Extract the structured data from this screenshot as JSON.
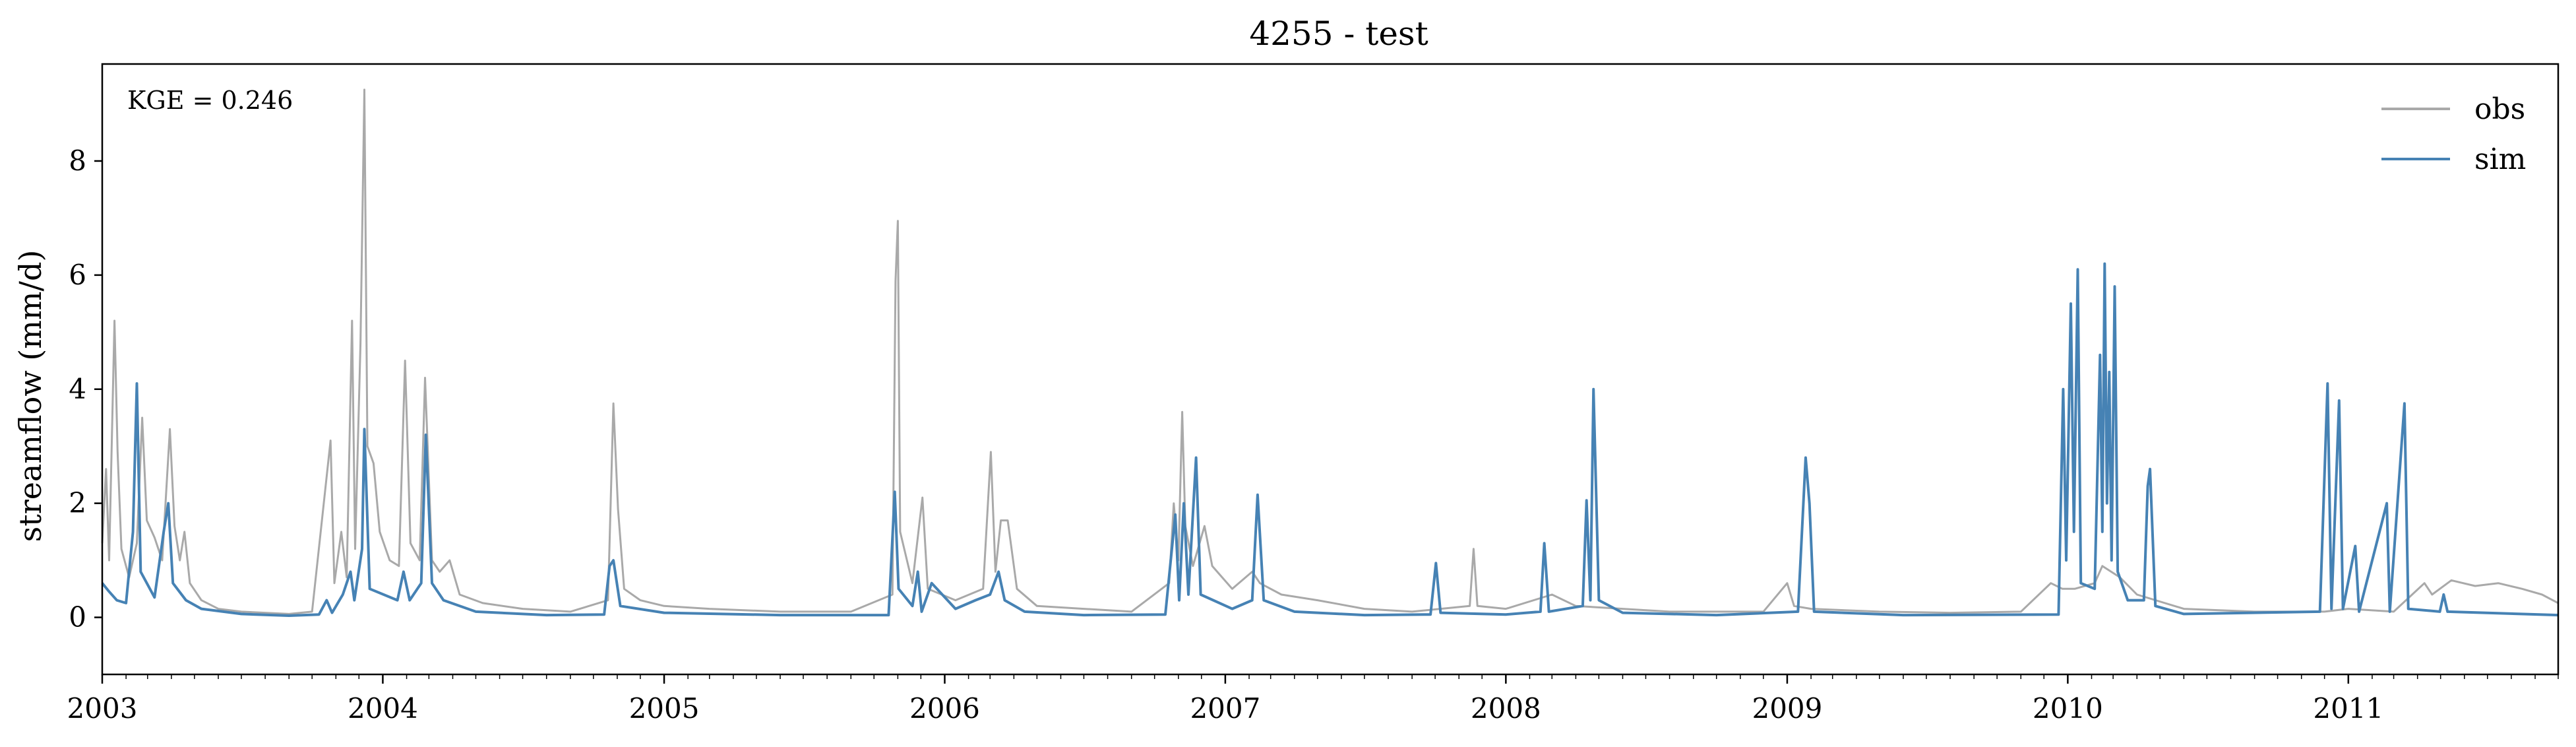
{
  "chart_data": {
    "type": "line",
    "title": "4255 - test",
    "xlabel": "",
    "ylabel": "streamflow (mm/d)",
    "annotation": "KGE = 0.246",
    "xlim": [
      "2003-01-01",
      "2011-10-01"
    ],
    "ylim": [
      -1,
      9.7
    ],
    "x_ticks": [
      "2003",
      "2004",
      "2005",
      "2006",
      "2007",
      "2008",
      "2009",
      "2010",
      "2011"
    ],
    "y_ticks": [
      "0",
      "2",
      "4",
      "6",
      "8"
    ],
    "legend_position": "top-right",
    "grid": false,
    "series": [
      {
        "name": "obs",
        "color": "#a9a9a9",
        "points": [
          [
            "2003-01-01",
            1.3
          ],
          [
            "2003-01-06",
            2.6
          ],
          [
            "2003-01-10",
            1.0
          ],
          [
            "2003-01-17",
            5.2
          ],
          [
            "2003-01-21",
            2.9
          ],
          [
            "2003-01-26",
            1.2
          ],
          [
            "2003-02-05",
            0.7
          ],
          [
            "2003-02-15",
            1.3
          ],
          [
            "2003-02-22",
            3.5
          ],
          [
            "2003-02-28",
            1.7
          ],
          [
            "2003-03-10",
            1.4
          ],
          [
            "2003-03-20",
            1.0
          ],
          [
            "2003-03-30",
            3.3
          ],
          [
            "2003-04-05",
            1.6
          ],
          [
            "2003-04-12",
            1.0
          ],
          [
            "2003-04-18",
            1.5
          ],
          [
            "2003-04-25",
            0.6
          ],
          [
            "2003-05-10",
            0.3
          ],
          [
            "2003-06-01",
            0.15
          ],
          [
            "2003-07-01",
            0.1
          ],
          [
            "2003-09-01",
            0.06
          ],
          [
            "2003-10-01",
            0.1
          ],
          [
            "2003-10-25",
            3.1
          ],
          [
            "2003-10-30",
            0.6
          ],
          [
            "2003-11-08",
            1.5
          ],
          [
            "2003-11-15",
            0.7
          ],
          [
            "2003-11-22",
            5.2
          ],
          [
            "2003-11-26",
            1.2
          ],
          [
            "2003-12-03",
            4.8
          ],
          [
            "2003-12-08",
            9.25
          ],
          [
            "2003-12-12",
            3.0
          ],
          [
            "2003-12-20",
            2.7
          ],
          [
            "2003-12-28",
            1.5
          ],
          [
            "2004-01-10",
            1.0
          ],
          [
            "2004-01-22",
            0.9
          ],
          [
            "2004-01-30",
            4.5
          ],
          [
            "2004-02-06",
            1.3
          ],
          [
            "2004-02-18",
            1.0
          ],
          [
            "2004-02-25",
            4.2
          ],
          [
            "2004-03-05",
            1.0
          ],
          [
            "2004-03-15",
            0.8
          ],
          [
            "2004-03-28",
            1.0
          ],
          [
            "2004-04-10",
            0.4
          ],
          [
            "2004-05-10",
            0.25
          ],
          [
            "2004-07-01",
            0.15
          ],
          [
            "2004-09-01",
            0.1
          ],
          [
            "2004-10-20",
            0.3
          ],
          [
            "2004-10-27",
            3.75
          ],
          [
            "2004-11-02",
            1.9
          ],
          [
            "2004-11-10",
            0.5
          ],
          [
            "2004-12-01",
            0.3
          ],
          [
            "2005-01-01",
            0.2
          ],
          [
            "2005-03-01",
            0.15
          ],
          [
            "2005-06-01",
            0.1
          ],
          [
            "2005-09-01",
            0.1
          ],
          [
            "2005-10-25",
            0.4
          ],
          [
            "2005-10-29",
            5.9
          ],
          [
            "2005-11-01",
            6.95
          ],
          [
            "2005-11-04",
            1.5
          ],
          [
            "2005-11-20",
            0.6
          ],
          [
            "2005-12-03",
            2.1
          ],
          [
            "2005-12-10",
            0.5
          ],
          [
            "2006-01-15",
            0.3
          ],
          [
            "2006-02-20",
            0.5
          ],
          [
            "2006-03-02",
            2.9
          ],
          [
            "2006-03-08",
            0.8
          ],
          [
            "2006-03-15",
            1.7
          ],
          [
            "2006-03-24",
            1.7
          ],
          [
            "2006-04-05",
            0.5
          ],
          [
            "2006-05-01",
            0.2
          ],
          [
            "2006-07-01",
            0.15
          ],
          [
            "2006-09-01",
            0.1
          ],
          [
            "2006-10-20",
            0.6
          ],
          [
            "2006-10-26",
            2.0
          ],
          [
            "2006-11-01",
            1.0
          ],
          [
            "2006-11-06",
            3.6
          ],
          [
            "2006-11-10",
            1.6
          ],
          [
            "2006-11-20",
            0.9
          ],
          [
            "2006-12-05",
            1.6
          ],
          [
            "2006-12-15",
            0.9
          ],
          [
            "2007-01-10",
            0.5
          ],
          [
            "2007-02-05",
            0.8
          ],
          [
            "2007-02-15",
            0.6
          ],
          [
            "2007-03-15",
            0.4
          ],
          [
            "2007-05-01",
            0.3
          ],
          [
            "2007-07-01",
            0.15
          ],
          [
            "2007-09-01",
            0.1
          ],
          [
            "2007-11-15",
            0.2
          ],
          [
            "2007-11-20",
            1.2
          ],
          [
            "2007-11-25",
            0.2
          ],
          [
            "2008-01-01",
            0.15
          ],
          [
            "2008-03-01",
            0.4
          ],
          [
            "2008-04-01",
            0.2
          ],
          [
            "2008-06-01",
            0.15
          ],
          [
            "2008-08-01",
            0.1
          ],
          [
            "2008-12-01",
            0.1
          ],
          [
            "2009-01-01",
            0.6
          ],
          [
            "2009-01-10",
            0.2
          ],
          [
            "2009-02-01",
            0.15
          ],
          [
            "2009-05-01",
            0.1
          ],
          [
            "2009-08-01",
            0.08
          ],
          [
            "2009-11-01",
            0.1
          ],
          [
            "2009-12-10",
            0.6
          ],
          [
            "2009-12-25",
            0.5
          ],
          [
            "2010-01-10",
            0.5
          ],
          [
            "2010-02-05",
            0.6
          ],
          [
            "2010-02-15",
            0.9
          ],
          [
            "2010-03-10",
            0.7
          ],
          [
            "2010-04-01",
            0.4
          ],
          [
            "2010-06-01",
            0.15
          ],
          [
            "2010-09-01",
            0.1
          ],
          [
            "2010-12-01",
            0.1
          ],
          [
            "2011-01-01",
            0.15
          ],
          [
            "2011-03-01",
            0.1
          ],
          [
            "2011-04-10",
            0.6
          ],
          [
            "2011-04-20",
            0.4
          ],
          [
            "2011-05-15",
            0.65
          ],
          [
            "2011-06-15",
            0.55
          ],
          [
            "2011-07-15",
            0.6
          ],
          [
            "2011-08-15",
            0.5
          ],
          [
            "2011-09-10",
            0.4
          ],
          [
            "2011-10-01",
            0.25
          ]
        ]
      },
      {
        "name": "sim",
        "color": "#4682b4",
        "points": [
          [
            "2003-01-01",
            0.6
          ],
          [
            "2003-01-10",
            0.45
          ],
          [
            "2003-01-20",
            0.3
          ],
          [
            "2003-02-01",
            0.25
          ],
          [
            "2003-02-10",
            1.5
          ],
          [
            "2003-02-15",
            4.1
          ],
          [
            "2003-02-20",
            0.8
          ],
          [
            "2003-03-10",
            0.35
          ],
          [
            "2003-03-22",
            1.5
          ],
          [
            "2003-03-28",
            2.0
          ],
          [
            "2003-04-03",
            0.6
          ],
          [
            "2003-04-20",
            0.3
          ],
          [
            "2003-05-10",
            0.15
          ],
          [
            "2003-07-01",
            0.06
          ],
          [
            "2003-09-01",
            0.03
          ],
          [
            "2003-10-10",
            0.05
          ],
          [
            "2003-10-20",
            0.3
          ],
          [
            "2003-10-27",
            0.08
          ],
          [
            "2003-11-10",
            0.4
          ],
          [
            "2003-11-20",
            0.8
          ],
          [
            "2003-11-25",
            0.3
          ],
          [
            "2003-12-05",
            1.2
          ],
          [
            "2003-12-08",
            3.3
          ],
          [
            "2003-12-15",
            0.5
          ],
          [
            "2004-01-20",
            0.3
          ],
          [
            "2004-01-28",
            0.8
          ],
          [
            "2004-02-05",
            0.3
          ],
          [
            "2004-02-20",
            0.6
          ],
          [
            "2004-02-26",
            3.2
          ],
          [
            "2004-03-05",
            0.6
          ],
          [
            "2004-03-20",
            0.3
          ],
          [
            "2004-05-01",
            0.1
          ],
          [
            "2004-08-01",
            0.04
          ],
          [
            "2004-10-15",
            0.05
          ],
          [
            "2004-10-22",
            0.9
          ],
          [
            "2004-10-27",
            1.0
          ],
          [
            "2004-11-05",
            0.2
          ],
          [
            "2005-01-01",
            0.08
          ],
          [
            "2005-06-01",
            0.04
          ],
          [
            "2005-10-20",
            0.04
          ],
          [
            "2005-10-28",
            2.2
          ],
          [
            "2005-11-02",
            0.5
          ],
          [
            "2005-11-20",
            0.2
          ],
          [
            "2005-11-27",
            0.8
          ],
          [
            "2005-12-02",
            0.1
          ],
          [
            "2005-12-15",
            0.6
          ],
          [
            "2006-01-15",
            0.15
          ],
          [
            "2006-02-10",
            0.3
          ],
          [
            "2006-03-01",
            0.4
          ],
          [
            "2006-03-12",
            0.8
          ],
          [
            "2006-03-20",
            0.3
          ],
          [
            "2006-04-15",
            0.1
          ],
          [
            "2006-07-01",
            0.04
          ],
          [
            "2006-10-15",
            0.05
          ],
          [
            "2006-10-28",
            1.8
          ],
          [
            "2006-11-02",
            0.3
          ],
          [
            "2006-11-08",
            2.0
          ],
          [
            "2006-11-14",
            0.4
          ],
          [
            "2006-11-24",
            2.8
          ],
          [
            "2006-11-30",
            0.4
          ],
          [
            "2007-01-10",
            0.15
          ],
          [
            "2007-02-05",
            0.3
          ],
          [
            "2007-02-12",
            2.15
          ],
          [
            "2007-02-20",
            0.3
          ],
          [
            "2007-04-01",
            0.1
          ],
          [
            "2007-07-01",
            0.04
          ],
          [
            "2007-09-25",
            0.05
          ],
          [
            "2007-10-02",
            0.95
          ],
          [
            "2007-10-08",
            0.08
          ],
          [
            "2008-01-01",
            0.05
          ],
          [
            "2008-02-15",
            0.1
          ],
          [
            "2008-02-20",
            1.3
          ],
          [
            "2008-02-26",
            0.1
          ],
          [
            "2008-04-10",
            0.2
          ],
          [
            "2008-04-15",
            2.05
          ],
          [
            "2008-04-20",
            0.3
          ],
          [
            "2008-04-24",
            4.0
          ],
          [
            "2008-05-01",
            0.3
          ],
          [
            "2008-06-01",
            0.08
          ],
          [
            "2008-10-01",
            0.04
          ],
          [
            "2009-01-15",
            0.1
          ],
          [
            "2009-01-25",
            2.8
          ],
          [
            "2009-01-30",
            2.0
          ],
          [
            "2009-02-05",
            0.1
          ],
          [
            "2009-06-01",
            0.04
          ],
          [
            "2009-12-20",
            0.05
          ],
          [
            "2009-12-26",
            4.0
          ],
          [
            "2009-12-30",
            1.0
          ],
          [
            "2010-01-05",
            5.5
          ],
          [
            "2010-01-09",
            1.5
          ],
          [
            "2010-01-14",
            6.1
          ],
          [
            "2010-01-18",
            0.6
          ],
          [
            "2010-02-05",
            0.5
          ],
          [
            "2010-02-12",
            4.6
          ],
          [
            "2010-02-15",
            1.5
          ],
          [
            "2010-02-18",
            6.2
          ],
          [
            "2010-02-21",
            2.0
          ],
          [
            "2010-02-24",
            4.3
          ],
          [
            "2010-02-27",
            1.0
          ],
          [
            "2010-03-03",
            5.8
          ],
          [
            "2010-03-07",
            0.8
          ],
          [
            "2010-03-20",
            0.3
          ],
          [
            "2010-04-10",
            0.3
          ],
          [
            "2010-04-15",
            2.3
          ],
          [
            "2010-04-18",
            2.6
          ],
          [
            "2010-04-25",
            0.2
          ],
          [
            "2010-06-01",
            0.06
          ],
          [
            "2010-11-25",
            0.1
          ],
          [
            "2010-12-05",
            4.1
          ],
          [
            "2010-12-10",
            0.15
          ],
          [
            "2010-12-20",
            3.8
          ],
          [
            "2010-12-25",
            0.15
          ],
          [
            "2011-01-10",
            1.25
          ],
          [
            "2011-01-15",
            0.1
          ],
          [
            "2011-02-20",
            2.0
          ],
          [
            "2011-02-24",
            0.1
          ],
          [
            "2011-03-15",
            3.75
          ],
          [
            "2011-03-20",
            0.15
          ],
          [
            "2011-04-30",
            0.1
          ],
          [
            "2011-05-05",
            0.4
          ],
          [
            "2011-05-10",
            0.1
          ],
          [
            "2011-10-01",
            0.04
          ]
        ]
      }
    ]
  }
}
